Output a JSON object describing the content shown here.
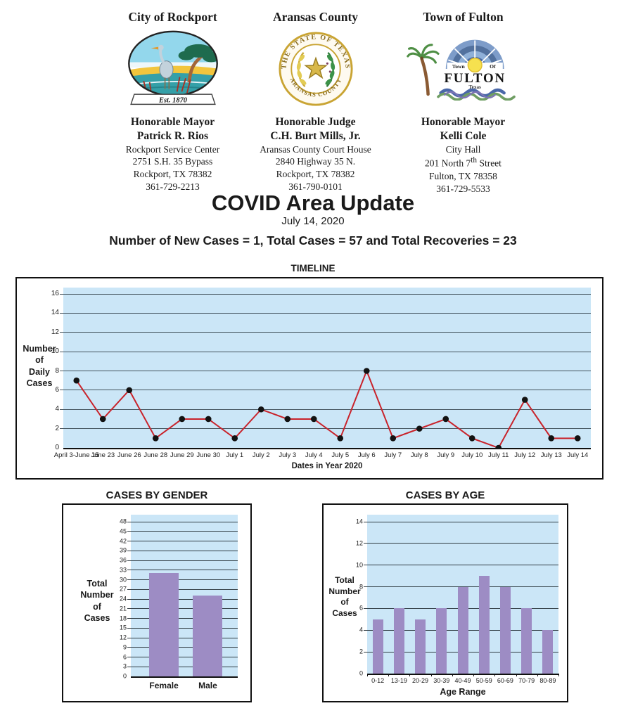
{
  "header": {
    "orgs": [
      {
        "title": "City of Rockport",
        "official_role": "Honorable Mayor",
        "official_name": "Patrick R. Rios",
        "address": [
          "Rockport Service Center",
          "2751 S.H. 35 Bypass",
          "Rockport, TX 78382",
          "361-729-2213"
        ],
        "logo": {
          "name": "city-of-rockport-seal",
          "banner": "Est. 1870"
        }
      },
      {
        "title": "Aransas County",
        "official_role": "Honorable Judge",
        "official_name": "C.H. Burt Mills, Jr.",
        "address": [
          "Aransas County Court House",
          "2840 Highway 35 N.",
          "Rockport, TX 78382",
          "361-790-0101"
        ],
        "logo": {
          "name": "aransas-county-seal",
          "ring_top": "THE STATE OF TEXAS",
          "ring_bottom": "ARANSAS COUNTY"
        }
      },
      {
        "title": "Town of Fulton",
        "official_role": "Honorable Mayor",
        "official_name": "Kelli Cole",
        "address_line1": "City Hall",
        "address_line2_pre": "201 North 7",
        "address_line2_sup": "th",
        "address_line2_post": " Street",
        "address_line3": "Fulton, TX 78358",
        "address_line4": "361-729-5533",
        "logo": {
          "name": "town-of-fulton-logo",
          "town": "Town",
          "of": "Of",
          "fulton": "FULTON",
          "texas": "Texas"
        }
      }
    ]
  },
  "main": {
    "title": "COVID Area Update",
    "date": "July 14, 2020",
    "stats": "Number of New Cases = 1, Total Cases = 57 and Total Recoveries = 23"
  },
  "chart_data": [
    {
      "id": "timeline",
      "type": "line",
      "title": "TIMELINE",
      "ylabel_lines": [
        "Number",
        "of",
        "Daily",
        "Cases"
      ],
      "xlabel": "Dates in Year 2020",
      "categories": [
        "April 3-June 15",
        "June 23",
        "June 26",
        "June 28",
        "June 29",
        "June 30",
        "July 1",
        "July 2",
        "July 3",
        "July 4",
        "July 5",
        "July 6",
        "July 7",
        "July 8",
        "July 9",
        "July 10",
        "July 11",
        "July 12",
        "July 13",
        "July 14"
      ],
      "values": [
        7,
        3,
        6,
        1,
        3,
        3,
        1,
        4,
        3,
        3,
        1,
        8,
        1,
        2,
        3,
        1,
        0,
        5,
        1,
        1
      ],
      "ylim": [
        0,
        16
      ],
      "ytick_step": 2,
      "grid": true,
      "legend": "none",
      "plot_bg": "#cbe6f7",
      "grid_color": "#42525c",
      "line_color": "#c9232b",
      "point_color": "#121212"
    },
    {
      "id": "gender",
      "type": "bar",
      "title": "CASES BY GENDER",
      "ylabel_lines": [
        "Total",
        "Number",
        "of",
        "Cases"
      ],
      "xlabel": "",
      "categories": [
        "Female",
        "Male"
      ],
      "values": [
        32,
        25
      ],
      "ylim": [
        0,
        48
      ],
      "ytick_step": 3,
      "grid": true,
      "legend": "none",
      "plot_bg": "#cbe6f7",
      "grid_color": "#2f3b42",
      "bar_color": "#9d8cc4"
    },
    {
      "id": "age",
      "type": "bar",
      "title": "CASES BY AGE",
      "ylabel_lines": [
        "Total",
        "Number",
        "of",
        "Cases"
      ],
      "xlabel": "Age Range",
      "categories": [
        "0-12",
        "13-19",
        "20-29",
        "30-39",
        "40-49",
        "50-59",
        "60-69",
        "70-79",
        "80-89"
      ],
      "values": [
        5,
        6,
        5,
        6,
        8,
        9,
        8,
        6,
        4
      ],
      "ylim": [
        0,
        14
      ],
      "ytick_step": 2,
      "grid": true,
      "legend": "none",
      "plot_bg": "#cbe6f7",
      "grid_color": "#2f3b42",
      "bar_color": "#9d8cc4"
    }
  ]
}
